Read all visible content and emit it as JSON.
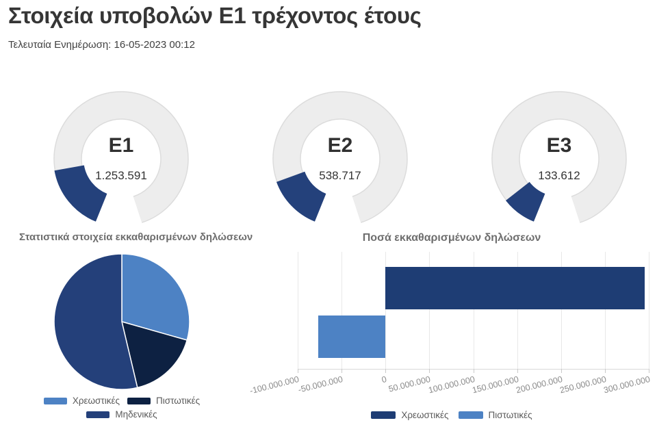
{
  "page": {
    "title": "Στοιχεία υποβολών Ε1 τρέχοντος έτους",
    "last_update": "Τελευταία Ενημέρωση: 16-05-2023 00:12"
  },
  "colors": {
    "gauge_fill": "#24417b",
    "gauge_track": "#ededed",
    "gauge_track_border": "#dcdcdc",
    "pie_light_blue": "#4d82c4",
    "pie_dark_navy": "#0d2142",
    "pie_medium_blue": "#24407a",
    "bar_navy": "#1e3d74",
    "bar_light_blue": "#4d82c4"
  },
  "gauges": [
    {
      "label": "E1",
      "value": 1253591,
      "value_text": "1.253.591",
      "sweep_deg": 58
    },
    {
      "label": "E2",
      "value": 538717,
      "value_text": "538.717",
      "sweep_deg": 48
    },
    {
      "label": "E3",
      "value": 133612,
      "value_text": "133.612",
      "sweep_deg": 30
    }
  ],
  "chart_data": [
    {
      "type": "pie",
      "title": "Στατιστικά στοιχεία εκκαθαρισμένων δηλώσεων",
      "start_angle": "top",
      "direction": "clockwise",
      "slices": [
        {
          "label": "Χρεωστικές",
          "percent": 29.4,
          "color": "#4d82c4"
        },
        {
          "label": "Πιστωτικές",
          "percent": 16.9,
          "color": "#0d2142"
        },
        {
          "label": "Μηδενικές",
          "percent": 53.7,
          "color": "#24407a"
        }
      ],
      "legend_rows": [
        [
          "Χρεωστικές",
          "Πιστωτικές"
        ],
        [
          "Μηδενικές"
        ]
      ],
      "legend_position": "bottom"
    },
    {
      "type": "bar",
      "title": "Ποσά  εκκαθαρισμένων δηλώσεων",
      "orientation": "horizontal",
      "series": [
        {
          "name": "Χρεωστικές",
          "value": 295000000,
          "color": "#1e3d74"
        },
        {
          "name": "Πιστωτικές",
          "value": -77000000,
          "color": "#4d82c4"
        }
      ],
      "xmin": -100000000,
      "xmax": 300000000,
      "x_ticks": [
        {
          "label": "-100.000.000",
          "value": -100000000
        },
        {
          "label": "-50.000.000",
          "value": -50000000
        },
        {
          "label": "0",
          "value": 0
        },
        {
          "label": "50.000.000",
          "value": 50000000
        },
        {
          "label": "100.000.000",
          "value": 100000000
        },
        {
          "label": "150.000.000",
          "value": 150000000
        },
        {
          "label": "200.000.000",
          "value": 200000000
        },
        {
          "label": "250.000.000",
          "value": 250000000
        },
        {
          "label": "300.000.000",
          "value": 300000000
        }
      ],
      "grid": true,
      "legend_position": "bottom"
    }
  ]
}
